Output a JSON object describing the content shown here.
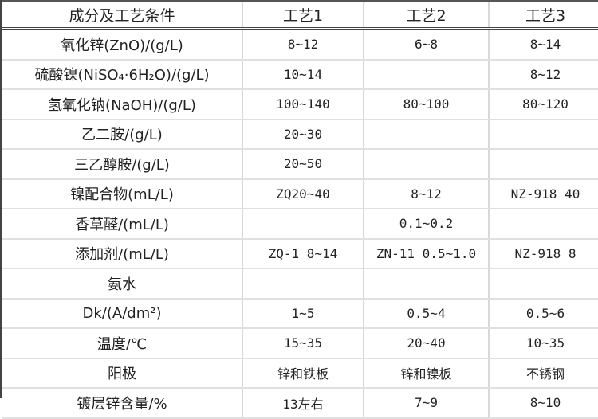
{
  "header": [
    "成分及工艺条件",
    "工艺1",
    "工艺2",
    "工艺3"
  ],
  "rows": [
    {
      "label": "氧化锌(ZnO)/(g/L)",
      "p1": "8~12",
      "p2": "6~8",
      "p3": "8~14"
    },
    {
      "label": "硫酸镍(NiSO₄·6H₂O)/(g/L)",
      "p1": "10~14",
      "p2": "",
      "p3": "8~12"
    },
    {
      "label": "氢氧化钠(NaOH)/(g/L)",
      "p1": "100~140",
      "p2": "80~100",
      "p3": "80~120"
    },
    {
      "label": "乙二胺/(g/L)",
      "p1": "20~30",
      "p2": "",
      "p3": ""
    },
    {
      "label": "三乙醇胺/(g/L)",
      "p1": "20~50",
      "p2": "",
      "p3": ""
    },
    {
      "label": "镍配合物(mL/L)",
      "p1": "ZQ20~40",
      "p2": "8~12",
      "p3": "NZ-918 40"
    },
    {
      "label": "香草醛/(mL/L)",
      "p1": "",
      "p2": "0.1~0.2",
      "p3": ""
    },
    {
      "label": "添加剂/(mL/L)",
      "p1": "ZQ-1 8~14",
      "p2": "ZN-11 0.5~1.0",
      "p3": "NZ-918 8"
    },
    {
      "label": "氨水",
      "p1": "",
      "p2": "",
      "p3": ""
    },
    {
      "label": "Dk/(A/dm²)",
      "p1": "1~5",
      "p2": "0.5~4",
      "p3": "0.5~6"
    },
    {
      "label": "温度/℃",
      "p1": "15~35",
      "p2": "20~40",
      "p3": "10~35"
    },
    {
      "label": "阳极",
      "p1": "锌和铁板",
      "p2": "锌和镍板",
      "p3": "不锈钢"
    },
    {
      "label": "镀层锌含量/%",
      "p1": "13左右",
      "p2": "7~9",
      "p3": "8~10"
    }
  ]
}
